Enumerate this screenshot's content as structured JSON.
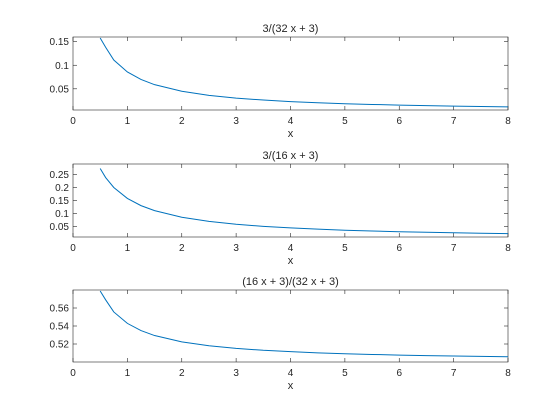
{
  "figure": {
    "background": "#ffffff"
  },
  "chart_data": [
    {
      "type": "line",
      "title": "3/(32 x + 3)",
      "xlabel": "x",
      "ylabel": "",
      "xlim": [
        0,
        8
      ],
      "ylim": [
        0.005,
        0.16
      ],
      "xticks": [
        0,
        1,
        2,
        3,
        4,
        5,
        6,
        7,
        8
      ],
      "xtick_labels": [
        "0",
        "1",
        "2",
        "3",
        "4",
        "5",
        "6",
        "7",
        "8"
      ],
      "yticks": [
        0.05,
        0.1,
        0.15
      ],
      "ytick_labels": [
        "0.05",
        "0.1",
        "0.15"
      ],
      "grid": false,
      "color": "#0072bd",
      "series": [
        {
          "x": [
            0.5,
            0.6,
            0.75,
            1,
            1.25,
            1.5,
            2,
            2.5,
            3,
            3.5,
            4,
            4.5,
            5,
            5.5,
            6,
            6.5,
            7,
            7.5,
            8
          ],
          "y": [
            0.1579,
            0.1382,
            0.1111,
            0.0857,
            0.0698,
            0.0588,
            0.0448,
            0.0361,
            0.0303,
            0.0261,
            0.0229,
            0.0204,
            0.0184,
            0.0168,
            0.0154,
            0.0142,
            0.0132,
            0.0123,
            0.0116
          ]
        }
      ]
    },
    {
      "type": "line",
      "title": "3/(16 x + 3)",
      "xlabel": "x",
      "ylabel": "",
      "xlim": [
        0,
        8
      ],
      "ylim": [
        0.01,
        0.29
      ],
      "xticks": [
        0,
        1,
        2,
        3,
        4,
        5,
        6,
        7,
        8
      ],
      "xtick_labels": [
        "0",
        "1",
        "2",
        "3",
        "4",
        "5",
        "6",
        "7",
        "8"
      ],
      "yticks": [
        0.05,
        0.1,
        0.15,
        0.2,
        0.25
      ],
      "ytick_labels": [
        "0.05",
        "0.1",
        "0.15",
        "0.2",
        "0.25"
      ],
      "grid": false,
      "color": "#0072bd",
      "series": [
        {
          "x": [
            0.5,
            0.6,
            0.75,
            1,
            1.25,
            1.5,
            2,
            2.5,
            3,
            3.5,
            4,
            4.5,
            5,
            5.5,
            6,
            6.5,
            7,
            7.5,
            8
          ],
          "y": [
            0.2727,
            0.2381,
            0.2,
            0.1579,
            0.1304,
            0.1111,
            0.0857,
            0.0698,
            0.0588,
            0.0508,
            0.0448,
            0.04,
            0.0361,
            0.033,
            0.0303,
            0.028,
            0.0261,
            0.0244,
            0.0229
          ]
        }
      ]
    },
    {
      "type": "line",
      "title": "(16 x + 3)/(32 x + 3)",
      "xlabel": "x",
      "ylabel": "",
      "xlim": [
        0,
        8
      ],
      "ylim": [
        0.5,
        0.58
      ],
      "xticks": [
        0,
        1,
        2,
        3,
        4,
        5,
        6,
        7,
        8
      ],
      "xtick_labels": [
        "0",
        "1",
        "2",
        "3",
        "4",
        "5",
        "6",
        "7",
        "8"
      ],
      "yticks": [
        0.52,
        0.54,
        0.56
      ],
      "ytick_labels": [
        "0.52",
        "0.54",
        "0.56"
      ],
      "grid": false,
      "color": "#0072bd",
      "series": [
        {
          "x": [
            0.5,
            0.6,
            0.75,
            1,
            1.25,
            1.5,
            2,
            2.5,
            3,
            3.5,
            4,
            4.5,
            5,
            5.5,
            6,
            6.5,
            7,
            7.5,
            8
          ],
          "y": [
            0.5789,
            0.5691,
            0.5556,
            0.5429,
            0.5349,
            0.5294,
            0.5224,
            0.5181,
            0.5152,
            0.513,
            0.5115,
            0.5102,
            0.5092,
            0.5084,
            0.5077,
            0.5071,
            0.5066,
            0.5062,
            0.5058
          ]
        }
      ]
    }
  ]
}
